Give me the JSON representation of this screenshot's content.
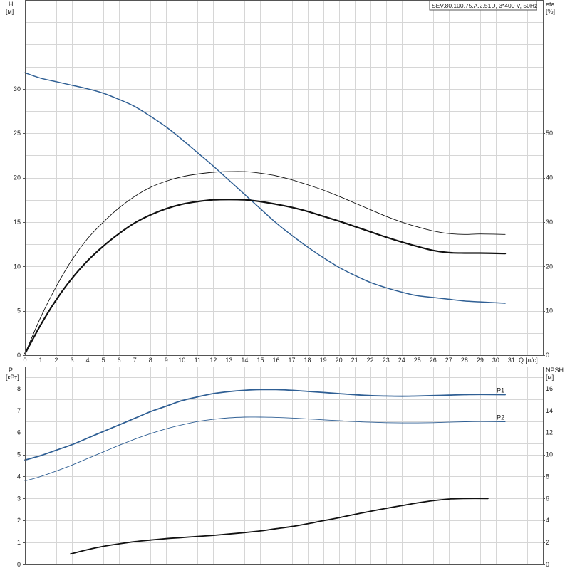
{
  "model_label": "SEV.80.100.75.A.2.51D, 3*400 V, 50Hz",
  "colors": {
    "blue": "#2f5f94",
    "black": "#111111",
    "grid": "#d6d6d6"
  },
  "chart_data": [
    {
      "type": "line",
      "panel": "top",
      "left_axis": {
        "title": "H",
        "unit": "[м]",
        "ticks": [
          0,
          5,
          10,
          15,
          20,
          25,
          30
        ],
        "range": [
          0,
          40
        ]
      },
      "right_axis": {
        "title": "eta",
        "unit": "[%]",
        "ticks": [
          0,
          10,
          20,
          30,
          40,
          50
        ],
        "range": [
          0,
          80
        ]
      },
      "x_axis": {
        "title": "Q",
        "unit": "[л/с]",
        "ticks": [
          0,
          1,
          2,
          3,
          4,
          5,
          6,
          7,
          8,
          9,
          10,
          11,
          12,
          13,
          14,
          15,
          16,
          17,
          18,
          19,
          20,
          21,
          22,
          23,
          24,
          25,
          26,
          27,
          28,
          29,
          30,
          31
        ],
        "range": [
          0,
          33
        ]
      },
      "grid": true,
      "series": [
        {
          "name": "",
          "axis": "left",
          "color": "#2f5f94",
          "width": 1.5,
          "points": [
            [
              0,
              31.8
            ],
            [
              1,
              31.2
            ],
            [
              2,
              30.8
            ],
            [
              3,
              30.4
            ],
            [
              4,
              30.0
            ],
            [
              5,
              29.5
            ],
            [
              6,
              28.8
            ],
            [
              7,
              28.0
            ],
            [
              8,
              26.9
            ],
            [
              9,
              25.7
            ],
            [
              10,
              24.3
            ],
            [
              11,
              22.8
            ],
            [
              12,
              21.3
            ],
            [
              13,
              19.7
            ],
            [
              14,
              18.1
            ],
            [
              15,
              16.5
            ],
            [
              16,
              14.9
            ],
            [
              17,
              13.5
            ],
            [
              18,
              12.2
            ],
            [
              19,
              11.0
            ],
            [
              20,
              9.9
            ],
            [
              21,
              9.0
            ],
            [
              22,
              8.2
            ],
            [
              23,
              7.6
            ],
            [
              24,
              7.1
            ],
            [
              25,
              6.7
            ],
            [
              26,
              6.5
            ],
            [
              27,
              6.3
            ],
            [
              28,
              6.1
            ],
            [
              29,
              6.0
            ],
            [
              30.6,
              5.85
            ]
          ]
        },
        {
          "name": "",
          "axis": "right",
          "color": "#111111",
          "width": 0.9,
          "points": [
            [
              0,
              0.3
            ],
            [
              1,
              8.5
            ],
            [
              2,
              15.5
            ],
            [
              3,
              21.5
            ],
            [
              4,
              26.3
            ],
            [
              5,
              30.0
            ],
            [
              6,
              33.2
            ],
            [
              7,
              35.8
            ],
            [
              8,
              37.8
            ],
            [
              9,
              39.2
            ],
            [
              10,
              40.2
            ],
            [
              11,
              40.8
            ],
            [
              12,
              41.2
            ],
            [
              13,
              41.35
            ],
            [
              14,
              41.35
            ],
            [
              15,
              41.0
            ],
            [
              16,
              40.4
            ],
            [
              17,
              39.5
            ],
            [
              18,
              38.4
            ],
            [
              19,
              37.2
            ],
            [
              20,
              35.8
            ],
            [
              21,
              34.3
            ],
            [
              22,
              32.8
            ],
            [
              23,
              31.3
            ],
            [
              24,
              30.0
            ],
            [
              25,
              28.9
            ],
            [
              26,
              28.0
            ],
            [
              27,
              27.4
            ],
            [
              28,
              27.2
            ],
            [
              29,
              27.3
            ],
            [
              30.6,
              27.2
            ]
          ]
        },
        {
          "name": "",
          "axis": "right",
          "color": "#111111",
          "width": 2.2,
          "points": [
            [
              0,
              0.3
            ],
            [
              1,
              6.8
            ],
            [
              2,
              12.5
            ],
            [
              3,
              17.3
            ],
            [
              4,
              21.3
            ],
            [
              5,
              24.6
            ],
            [
              6,
              27.4
            ],
            [
              7,
              29.8
            ],
            [
              8,
              31.6
            ],
            [
              9,
              33.0
            ],
            [
              10,
              34.0
            ],
            [
              11,
              34.6
            ],
            [
              12,
              35.0
            ],
            [
              13,
              35.1
            ],
            [
              14,
              35.0
            ],
            [
              15,
              34.6
            ],
            [
              16,
              34.0
            ],
            [
              17,
              33.3
            ],
            [
              18,
              32.4
            ],
            [
              19,
              31.3
            ],
            [
              20,
              30.2
            ],
            [
              21,
              29.0
            ],
            [
              22,
              27.8
            ],
            [
              23,
              26.6
            ],
            [
              24,
              25.5
            ],
            [
              25,
              24.5
            ],
            [
              26,
              23.6
            ],
            [
              27,
              23.1
            ],
            [
              28,
              23.0
            ],
            [
              29,
              23.0
            ],
            [
              30.6,
              22.9
            ]
          ]
        }
      ]
    },
    {
      "type": "line",
      "panel": "bottom",
      "left_axis": {
        "title": "P",
        "unit": "[кВт]",
        "ticks": [
          0,
          1,
          2,
          3,
          4,
          5,
          6,
          7,
          8
        ],
        "range": [
          0,
          9
        ]
      },
      "right_axis": {
        "title": "NPSH",
        "unit": "[м]",
        "ticks": [
          0,
          2,
          4,
          6,
          8,
          10,
          12,
          14,
          16
        ],
        "range": [
          0,
          18
        ]
      },
      "x_axis": {
        "range": [
          0,
          33
        ],
        "ticks": [
          0,
          1,
          2,
          3,
          4,
          5,
          6,
          7,
          8,
          9,
          10,
          11,
          12,
          13,
          14,
          15,
          16,
          17,
          18,
          19,
          20,
          21,
          22,
          23,
          24,
          25,
          26,
          27,
          28,
          29,
          30,
          31
        ]
      },
      "grid": true,
      "series": [
        {
          "name": "P1",
          "axis": "left",
          "color": "#2f5f94",
          "width": 1.8,
          "points": [
            [
              0,
              4.75
            ],
            [
              1,
              4.95
            ],
            [
              2,
              5.2
            ],
            [
              3,
              5.45
            ],
            [
              4,
              5.75
            ],
            [
              5,
              6.05
            ],
            [
              6,
              6.35
            ],
            [
              7,
              6.65
            ],
            [
              8,
              6.95
            ],
            [
              9,
              7.2
            ],
            [
              10,
              7.45
            ],
            [
              11,
              7.62
            ],
            [
              12,
              7.77
            ],
            [
              13,
              7.86
            ],
            [
              14,
              7.92
            ],
            [
              15,
              7.95
            ],
            [
              16,
              7.95
            ],
            [
              17,
              7.92
            ],
            [
              18,
              7.87
            ],
            [
              19,
              7.82
            ],
            [
              20,
              7.77
            ],
            [
              21,
              7.72
            ],
            [
              22,
              7.68
            ],
            [
              23,
              7.66
            ],
            [
              24,
              7.65
            ],
            [
              25,
              7.66
            ],
            [
              26,
              7.68
            ],
            [
              27,
              7.7
            ],
            [
              28,
              7.72
            ],
            [
              29,
              7.73
            ],
            [
              30.6,
              7.72
            ]
          ]
        },
        {
          "name": "P2",
          "axis": "left",
          "color": "#2f5f94",
          "width": 0.9,
          "points": [
            [
              0,
              3.8
            ],
            [
              1,
              4.0
            ],
            [
              2,
              4.25
            ],
            [
              3,
              4.52
            ],
            [
              4,
              4.82
            ],
            [
              5,
              5.12
            ],
            [
              6,
              5.42
            ],
            [
              7,
              5.7
            ],
            [
              8,
              5.95
            ],
            [
              9,
              6.17
            ],
            [
              10,
              6.35
            ],
            [
              11,
              6.5
            ],
            [
              12,
              6.6
            ],
            [
              13,
              6.67
            ],
            [
              14,
              6.7
            ],
            [
              15,
              6.7
            ],
            [
              16,
              6.69
            ],
            [
              17,
              6.66
            ],
            [
              18,
              6.62
            ],
            [
              19,
              6.58
            ],
            [
              20,
              6.54
            ],
            [
              21,
              6.5
            ],
            [
              22,
              6.47
            ],
            [
              23,
              6.45
            ],
            [
              24,
              6.44
            ],
            [
              25,
              6.44
            ],
            [
              26,
              6.45
            ],
            [
              27,
              6.47
            ],
            [
              28,
              6.49
            ],
            [
              29,
              6.5
            ],
            [
              30.6,
              6.49
            ]
          ]
        },
        {
          "name": "",
          "axis": "right",
          "color": "#111111",
          "width": 1.8,
          "points": [
            [
              2.9,
              0.95
            ],
            [
              4,
              1.35
            ],
            [
              5,
              1.65
            ],
            [
              6,
              1.88
            ],
            [
              7,
              2.08
            ],
            [
              8,
              2.22
            ],
            [
              9,
              2.35
            ],
            [
              10,
              2.45
            ],
            [
              11,
              2.55
            ],
            [
              12,
              2.65
            ],
            [
              13,
              2.77
            ],
            [
              14,
              2.9
            ],
            [
              15,
              3.05
            ],
            [
              16,
              3.25
            ],
            [
              17,
              3.45
            ],
            [
              18,
              3.7
            ],
            [
              19,
              3.98
            ],
            [
              20,
              4.25
            ],
            [
              21,
              4.55
            ],
            [
              22,
              4.83
            ],
            [
              23,
              5.1
            ],
            [
              24,
              5.35
            ],
            [
              25,
              5.6
            ],
            [
              26,
              5.8
            ],
            [
              27,
              5.95
            ],
            [
              28,
              6.0
            ],
            [
              29.5,
              6.0
            ]
          ]
        }
      ]
    }
  ]
}
